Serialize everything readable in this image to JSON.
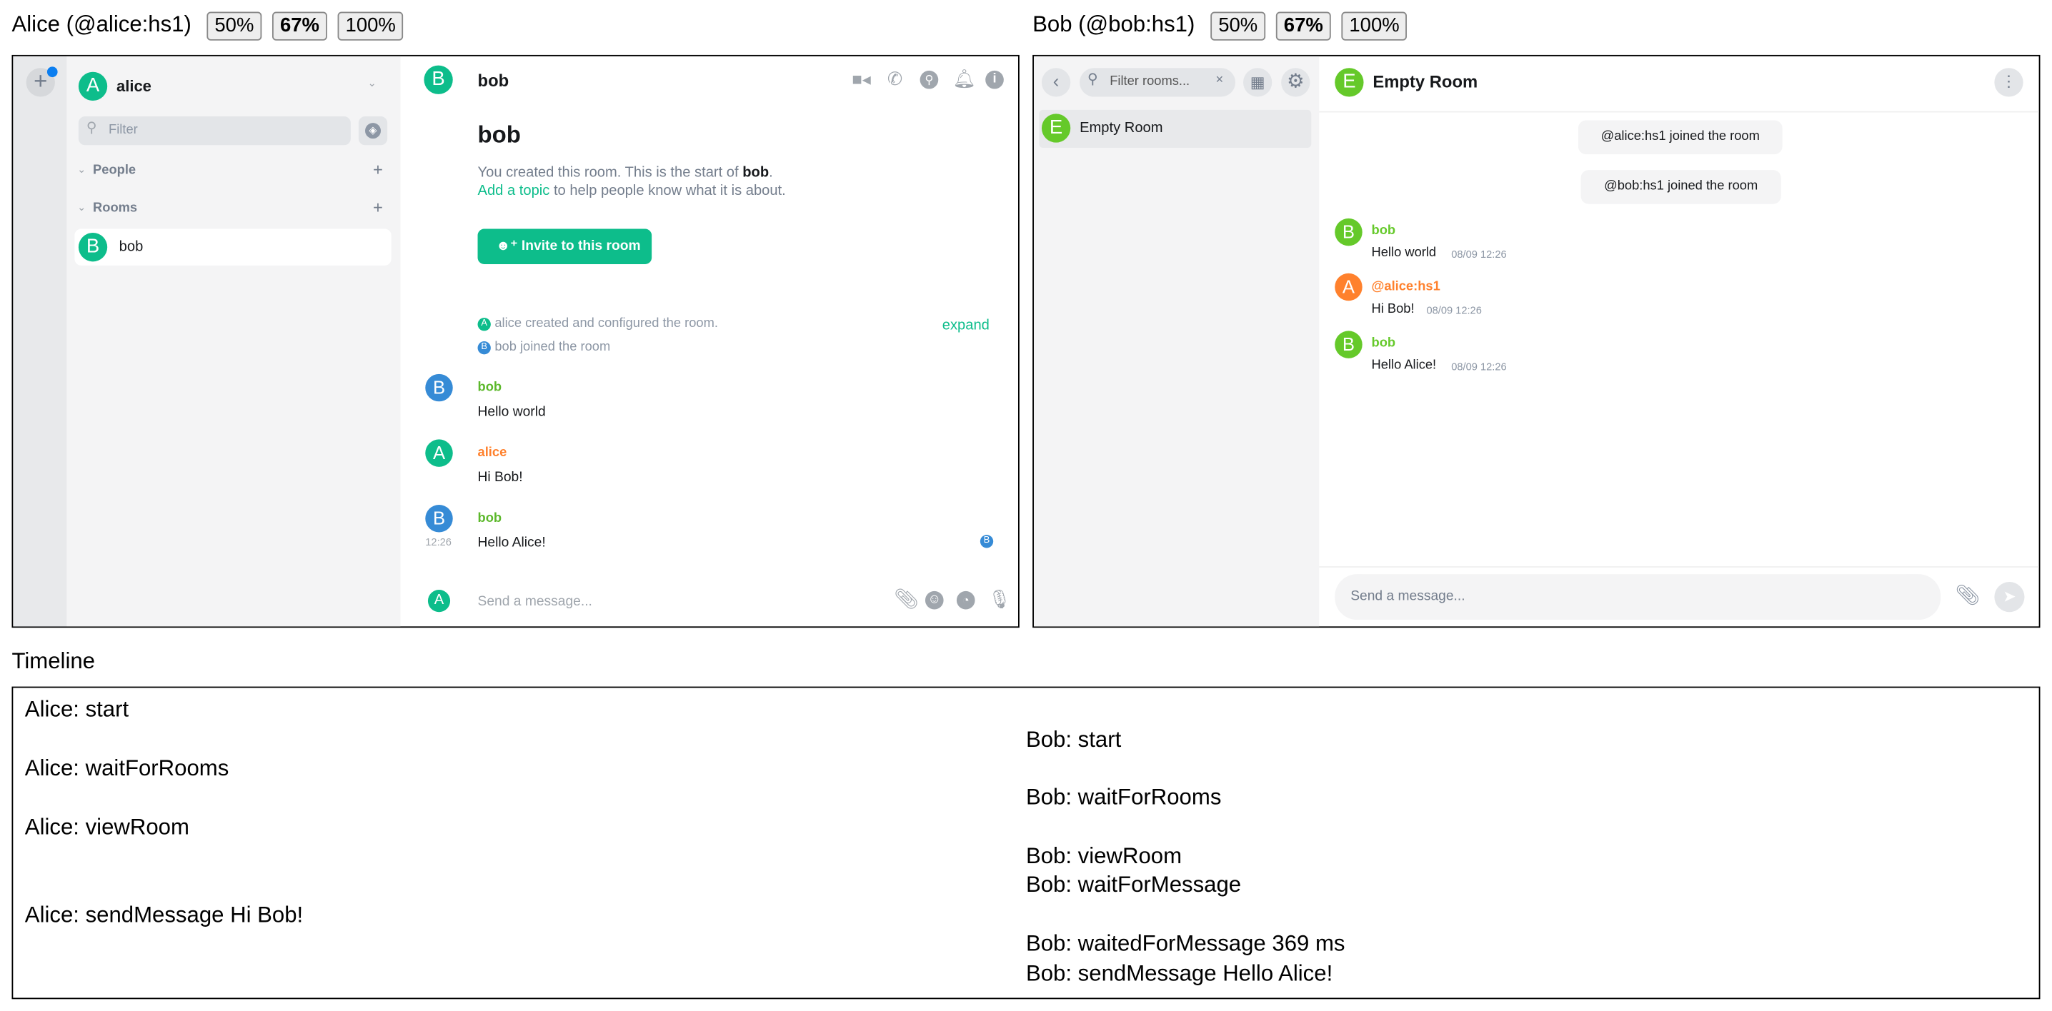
{
  "alice_pane": {
    "title": "Alice (@alice:hs1)",
    "zoom_options": [
      "50%",
      "67%",
      "100%"
    ],
    "zoom_selected": "67%",
    "user": {
      "initial": "A",
      "name": "alice"
    },
    "filter_placeholder": "Filter",
    "sections": {
      "people": "People",
      "rooms": "Rooms"
    },
    "rooms": [
      {
        "initial": "B",
        "name": "bob"
      }
    ],
    "room_header": {
      "initial": "B",
      "name": "bob"
    },
    "intro": {
      "heading": "bob",
      "created_prefix": "You created this room. This is the start of ",
      "created_room": "bob",
      "created_suffix": ".",
      "add_topic": "Add a topic",
      "topic_suffix": " to help people know what it is about.",
      "invite_label": "Invite to this room"
    },
    "events": [
      {
        "initial": "A",
        "text": "alice created and configured the room."
      },
      {
        "initial": "B",
        "text": "bob joined the room"
      }
    ],
    "expand_label": "expand",
    "messages": [
      {
        "initial": "B",
        "sender": "bob",
        "body": "Hello world",
        "time": ""
      },
      {
        "initial": "A",
        "sender": "alice",
        "body": "Hi Bob!",
        "time": ""
      },
      {
        "initial": "B",
        "sender": "bob",
        "body": "Hello Alice!",
        "time": "12:26"
      }
    ],
    "read_receipt": "B",
    "composer": {
      "initial": "A",
      "placeholder": "Send a message..."
    }
  },
  "bob_pane": {
    "title": "Bob (@bob:hs1)",
    "zoom_options": [
      "50%",
      "67%",
      "100%"
    ],
    "zoom_selected": "67%",
    "filter_placeholder": "Filter rooms...",
    "rooms": [
      {
        "initial": "E",
        "name": "Empty Room"
      }
    ],
    "room_header": {
      "initial": "E",
      "name": "Empty Room"
    },
    "notices": [
      "@alice:hs1 joined the room",
      "@bob:hs1 joined the room"
    ],
    "messages": [
      {
        "initial": "B",
        "sender": "bob",
        "body": "Hello world",
        "time": "08/09 12:26"
      },
      {
        "initial": "A",
        "sender": "@alice:hs1",
        "body": "Hi Bob!",
        "time": "08/09 12:26"
      },
      {
        "initial": "B",
        "sender": "bob",
        "body": "Hello Alice!",
        "time": "08/09 12:26"
      }
    ],
    "composer_placeholder": "Send a message..."
  },
  "timeline": {
    "title": "Timeline",
    "alice": [
      "Alice: start",
      "Alice: waitForRooms",
      "Alice: viewRoom",
      "Alice: sendMessage Hi Bob!"
    ],
    "bob": [
      "Bob: start",
      "Bob: waitForRooms",
      "Bob: viewRoom",
      "Bob: waitForMessage",
      "Bob: waitedForMessage 369 ms",
      "Bob: sendMessage Hello Alice!"
    ]
  },
  "colors": {
    "element_green": "#0dbd8b",
    "alice_name": "#ff812d",
    "bob_name_alice_view": "#5cb82b",
    "bob_avatar_blue": "#368bd6",
    "bob_view_green": "#65c92a",
    "notification_dot": "#0b7ef0"
  }
}
